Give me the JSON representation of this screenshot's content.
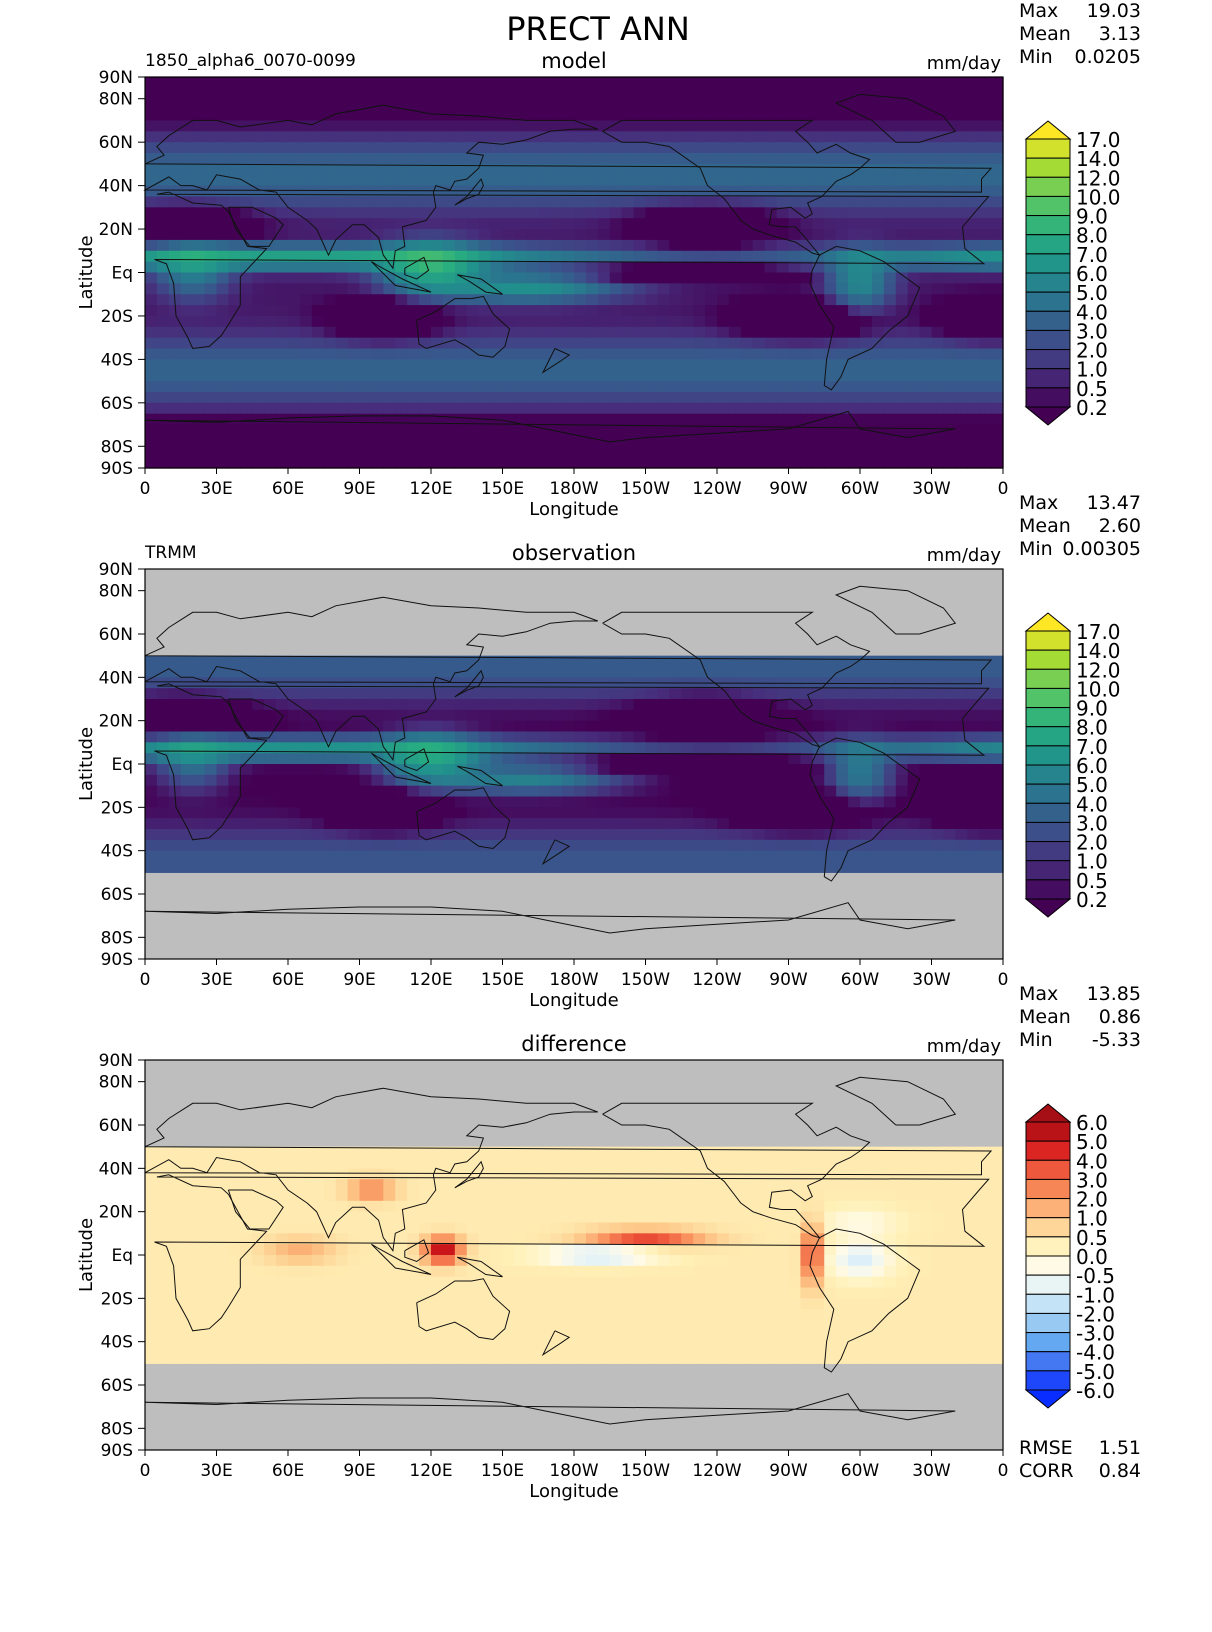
{
  "title": "PRECT ANN",
  "colors": {
    "missing": "#bebebe",
    "coast": "#111111",
    "seq_cmap": [
      "#440154",
      "#472d7b",
      "#3b518b",
      "#2c718e",
      "#21908d",
      "#27ad81",
      "#5cc863",
      "#aadc32",
      "#fde725"
    ],
    "div_cmap": [
      "#0a2dff",
      "#3d6cf2",
      "#66aaf2",
      "#a7d3f2",
      "#dff1fa",
      "#fffbea",
      "#fff1b8",
      "#fdc98a",
      "#f99560",
      "#ef5a3d",
      "#d7191c",
      "#a50f15"
    ]
  },
  "chart_data": [
    {
      "type": "heatmap",
      "id": "model",
      "title": "model",
      "left_label": "1850_alpha6_0070-0099",
      "units": "mm/day",
      "xlabel": "Longitude",
      "ylabel": "Latitude",
      "x_ticks": [
        "0",
        "30E",
        "60E",
        "90E",
        "120E",
        "150E",
        "180W",
        "150W",
        "120W",
        "90W",
        "60W",
        "30W",
        "0"
      ],
      "y_ticks": [
        "90N",
        "80N",
        "60N",
        "40N",
        "20N",
        "Eq",
        "20S",
        "40S",
        "60S",
        "80S",
        "90S"
      ],
      "y_tick_values": [
        90,
        80,
        60,
        40,
        20,
        0,
        -20,
        -40,
        -60,
        -80,
        -90
      ],
      "stats": [
        {
          "label": "Max",
          "value": "19.03"
        },
        {
          "label": "Mean",
          "value": "3.13"
        },
        {
          "label": "Min",
          "value": "0.0205"
        }
      ],
      "colorbar": {
        "levels": [
          "17.0",
          "14.0",
          "12.0",
          "10.0",
          "9.0",
          "8.0",
          "7.0",
          "6.0",
          "5.0",
          "4.0",
          "3.0",
          "2.0",
          "1.0",
          "0.5",
          "0.2"
        ],
        "cmap": "seq"
      },
      "lat_range": [
        -90,
        90
      ],
      "xlim": [
        0,
        360
      ],
      "ylim": [
        -90,
        90
      ]
    },
    {
      "type": "heatmap",
      "id": "observation",
      "title": "observation",
      "left_label": "TRMM",
      "units": "mm/day",
      "xlabel": "Longitude",
      "ylabel": "Latitude",
      "x_ticks": [
        "0",
        "30E",
        "60E",
        "90E",
        "120E",
        "150E",
        "180W",
        "150W",
        "120W",
        "90W",
        "60W",
        "30W",
        "0"
      ],
      "y_ticks": [
        "90N",
        "80N",
        "60N",
        "40N",
        "20N",
        "Eq",
        "20S",
        "40S",
        "60S",
        "80S",
        "90S"
      ],
      "y_tick_values": [
        90,
        80,
        60,
        40,
        20,
        0,
        -20,
        -40,
        -60,
        -80,
        -90
      ],
      "stats": [
        {
          "label": "Max",
          "value": "13.47"
        },
        {
          "label": "Mean",
          "value": "2.60"
        },
        {
          "label": "Min",
          "value": "0.00305"
        }
      ],
      "colorbar": {
        "levels": [
          "17.0",
          "14.0",
          "12.0",
          "10.0",
          "9.0",
          "8.0",
          "7.0",
          "6.0",
          "5.0",
          "4.0",
          "3.0",
          "2.0",
          "1.0",
          "0.5",
          "0.2"
        ],
        "cmap": "seq"
      },
      "lat_range": [
        -50,
        50
      ],
      "xlim": [
        0,
        360
      ],
      "ylim": [
        -90,
        90
      ]
    },
    {
      "type": "heatmap",
      "id": "difference",
      "title": "difference",
      "left_label": "",
      "units": "mm/day",
      "xlabel": "Longitude",
      "ylabel": "Latitude",
      "x_ticks": [
        "0",
        "30E",
        "60E",
        "90E",
        "120E",
        "150E",
        "180W",
        "150W",
        "120W",
        "90W",
        "60W",
        "30W",
        "0"
      ],
      "y_ticks": [
        "90N",
        "80N",
        "60N",
        "40N",
        "20N",
        "Eq",
        "20S",
        "40S",
        "60S",
        "80S",
        "90S"
      ],
      "y_tick_values": [
        90,
        80,
        60,
        40,
        20,
        0,
        -20,
        -40,
        -60,
        -80,
        -90
      ],
      "stats": [
        {
          "label": "Max",
          "value": "13.85"
        },
        {
          "label": "Mean",
          "value": "0.86"
        },
        {
          "label": "Min",
          "value": "-5.33"
        }
      ],
      "colorbar": {
        "levels": [
          "6.0",
          "5.0",
          "4.0",
          "3.0",
          "2.0",
          "1.0",
          "0.5",
          "0.0",
          "-0.5",
          "-1.0",
          "-2.0",
          "-3.0",
          "-4.0",
          "-5.0",
          "-6.0"
        ],
        "cmap": "div"
      },
      "lat_range": [
        -50,
        50
      ],
      "bottom_stats": [
        {
          "label": "RMSE",
          "value": "1.51"
        },
        {
          "label": "CORR",
          "value": "0.84"
        }
      ],
      "xlim": [
        0,
        360
      ],
      "ylim": [
        -90,
        90
      ]
    }
  ]
}
